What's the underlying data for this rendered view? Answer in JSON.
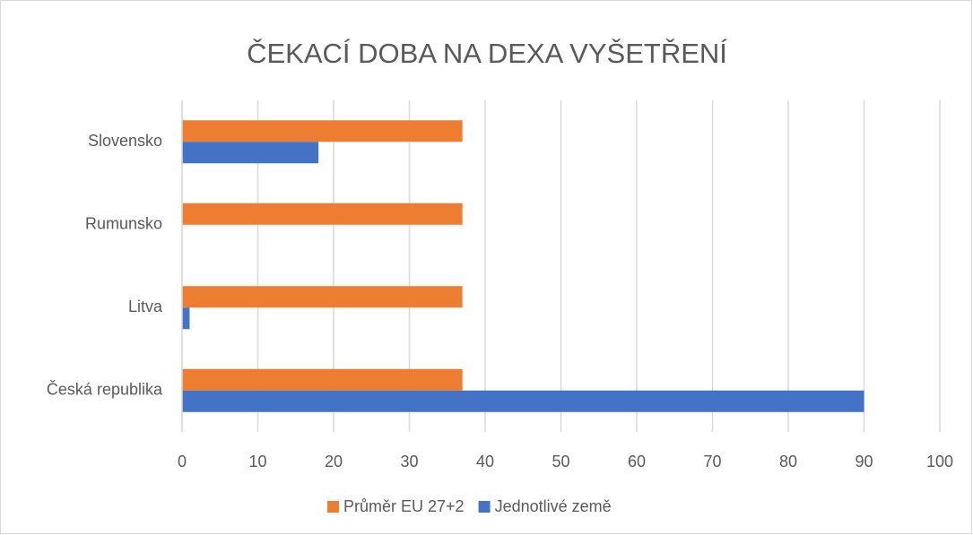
{
  "chart_data": {
    "type": "hbar",
    "title": "ČEKACÍ DOBA NA DEXA VYŠETŘENÍ",
    "categories": [
      "Česká republika",
      "Litva",
      "Rumunsko",
      "Slovensko"
    ],
    "series": [
      {
        "name": "Průměr EU 27+2",
        "color": "#ed7d31",
        "values": [
          37,
          37,
          37,
          37
        ]
      },
      {
        "name": "Jednotlivé země",
        "color": "#4472c4",
        "values": [
          90,
          1,
          null,
          18
        ]
      }
    ],
    "xlim": [
      0,
      100
    ],
    "xticks": [
      0,
      10,
      20,
      30,
      40,
      50,
      60,
      70,
      80,
      90,
      100
    ],
    "grid": true,
    "legend": "bottom"
  }
}
